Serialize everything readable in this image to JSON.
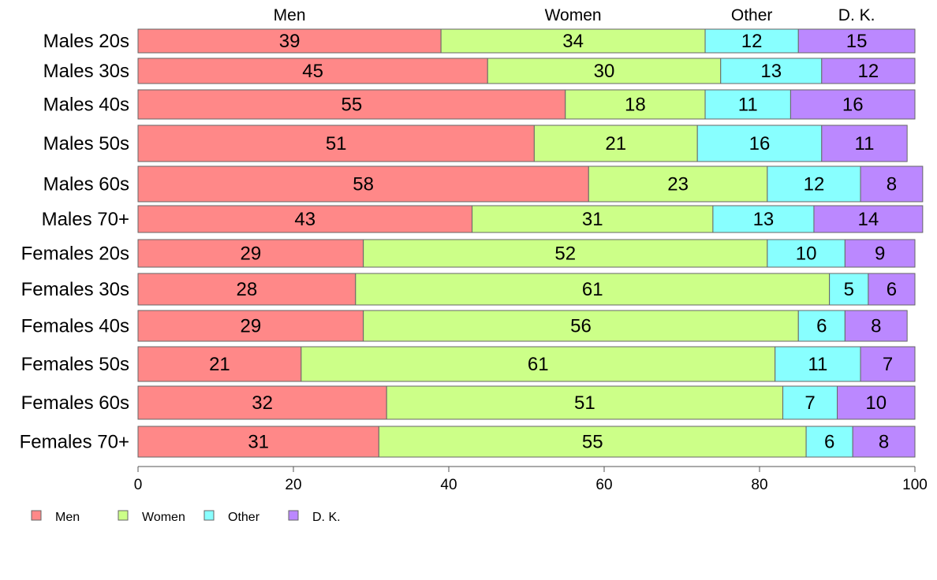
{
  "chart_data": {
    "type": "bar",
    "orientation": "horizontal",
    "stacked": true,
    "categories": [
      "Males 20s",
      "Males 30s",
      "Males 40s",
      "Males 50s",
      "Males 60s",
      "Males 70+",
      "Females 20s",
      "Females 30s",
      "Females 40s",
      "Females 50s",
      "Females 60s",
      "Females 70+"
    ],
    "series": [
      {
        "name": "Men",
        "color": "#ff8888",
        "values": [
          39,
          45,
          55,
          51,
          58,
          43,
          29,
          28,
          29,
          21,
          32,
          31
        ]
      },
      {
        "name": "Women",
        "color": "#ccff88",
        "values": [
          34,
          30,
          18,
          21,
          23,
          31,
          52,
          61,
          56,
          61,
          51,
          55
        ]
      },
      {
        "name": "Other",
        "color": "#88ffff",
        "values": [
          12,
          13,
          11,
          16,
          12,
          13,
          10,
          5,
          6,
          11,
          7,
          6
        ]
      },
      {
        "name": "D. K.",
        "color": "#bb88ff",
        "values": [
          15,
          12,
          16,
          11,
          8,
          14,
          9,
          6,
          8,
          7,
          10,
          8
        ]
      }
    ],
    "xlim": [
      0,
      100
    ],
    "xticks": [
      0,
      20,
      40,
      60,
      80,
      100
    ],
    "legend_position": "bottom-left",
    "grid": false
  }
}
